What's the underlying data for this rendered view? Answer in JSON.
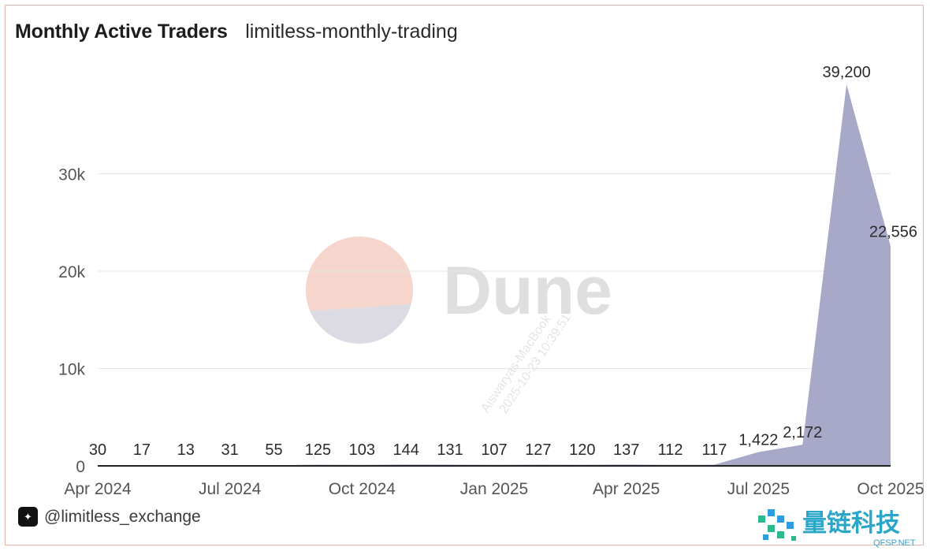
{
  "header": {
    "title": "Monthly Active Traders",
    "subtitle": "limitless-monthly-trading"
  },
  "footer": {
    "handle": "@limitless_exchange"
  },
  "watermark": {
    "brand": "Dune",
    "user_line1": "Aiswaryas-MacBook",
    "user_line2": "2025-10-23 10:39:51"
  },
  "corner_brand": {
    "name": "量链科技",
    "site": "QFSP.NET"
  },
  "colors": {
    "area_fill": "#a8a9c9",
    "grid": "#e6e6e6",
    "frame_border": "#e7b5a6",
    "dune_logo_top": "#f6d6cc",
    "dune_logo_bottom": "#dcdbe3",
    "brand_green": "#2bb98e",
    "brand_blue": "#2d9fe0"
  },
  "chart_data": {
    "type": "area",
    "title": "Monthly Active Traders",
    "subtitle": "limitless-monthly-trading",
    "xlabel": "",
    "ylabel": "",
    "x": [
      "2024-04",
      "2024-05",
      "2024-06",
      "2024-07",
      "2024-08",
      "2024-09",
      "2024-10",
      "2024-11",
      "2024-12",
      "2025-01",
      "2025-02",
      "2025-03",
      "2025-04",
      "2025-05",
      "2025-06",
      "2025-07",
      "2025-08",
      "2025-09",
      "2025-10"
    ],
    "values": [
      30,
      17,
      13,
      31,
      55,
      125,
      103,
      144,
      131,
      107,
      127,
      120,
      137,
      112,
      117,
      1422,
      2172,
      39200,
      22556
    ],
    "data_labels": [
      "30",
      "17",
      "13",
      "31",
      "55",
      "125",
      "103",
      "144",
      "131",
      "107",
      "127",
      "120",
      "137",
      "112",
      "117",
      "1,422",
      "2,172",
      "39,200",
      "22,556"
    ],
    "x_tick_labels": [
      {
        "label": "Apr 2024",
        "index": 0
      },
      {
        "label": "Jul 2024",
        "index": 3
      },
      {
        "label": "Oct 2024",
        "index": 6
      },
      {
        "label": "Jan 2025",
        "index": 9
      },
      {
        "label": "Apr 2025",
        "index": 12
      },
      {
        "label": "Jul 2025",
        "index": 15
      },
      {
        "label": "Oct 2025",
        "index": 18
      }
    ],
    "y_ticks": [
      {
        "label": "0",
        "value": 0
      },
      {
        "label": "10k",
        "value": 10000
      },
      {
        "label": "20k",
        "value": 20000
      },
      {
        "label": "30k",
        "value": 30000
      }
    ],
    "ylim": [
      0,
      40000
    ],
    "grid": true,
    "legend": "none"
  }
}
